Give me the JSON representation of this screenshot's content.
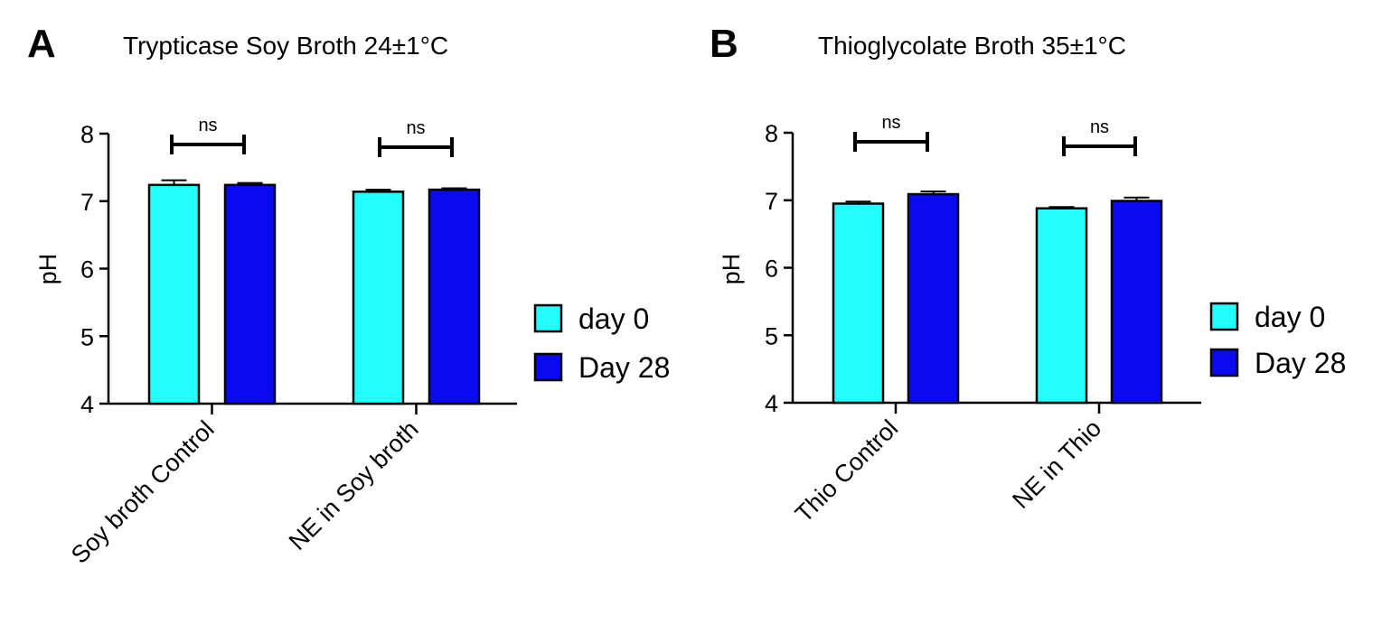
{
  "chart_data": [
    {
      "type": "bar",
      "panel_letter": "A",
      "title": "Trypticase Soy Broth 24±1°C",
      "ylabel": "pH",
      "xlabel": "",
      "ylim": [
        4,
        8
      ],
      "yticks": [
        4,
        5,
        6,
        7,
        8
      ],
      "categories": [
        "Soy broth Control",
        "NE in Soy broth"
      ],
      "series": [
        {
          "name": "day 0",
          "color": "#22FFFF",
          "values": [
            7.24,
            7.14
          ],
          "errors": [
            0.07,
            0.03
          ]
        },
        {
          "name": "Day 28",
          "color": "#0A0AF0",
          "values": [
            7.24,
            7.17
          ],
          "errors": [
            0.03,
            0.02
          ]
        }
      ],
      "significance": [
        "ns",
        "ns"
      ],
      "legend_position": "right"
    },
    {
      "type": "bar",
      "panel_letter": "B",
      "title": "Thioglycolate Broth 35±1°C",
      "ylabel": "pH",
      "xlabel": "",
      "ylim": [
        4,
        8
      ],
      "yticks": [
        4,
        5,
        6,
        7,
        8
      ],
      "categories": [
        "Thio Control",
        "NE in Thio"
      ],
      "series": [
        {
          "name": "day 0",
          "color": "#22FFFF",
          "values": [
            6.95,
            6.88
          ],
          "errors": [
            0.03,
            0.02
          ]
        },
        {
          "name": "Day 28",
          "color": "#0A0AF0",
          "values": [
            7.09,
            6.99
          ],
          "errors": [
            0.04,
            0.05
          ]
        }
      ],
      "significance": [
        "ns",
        "ns"
      ],
      "legend_position": "right"
    }
  ]
}
